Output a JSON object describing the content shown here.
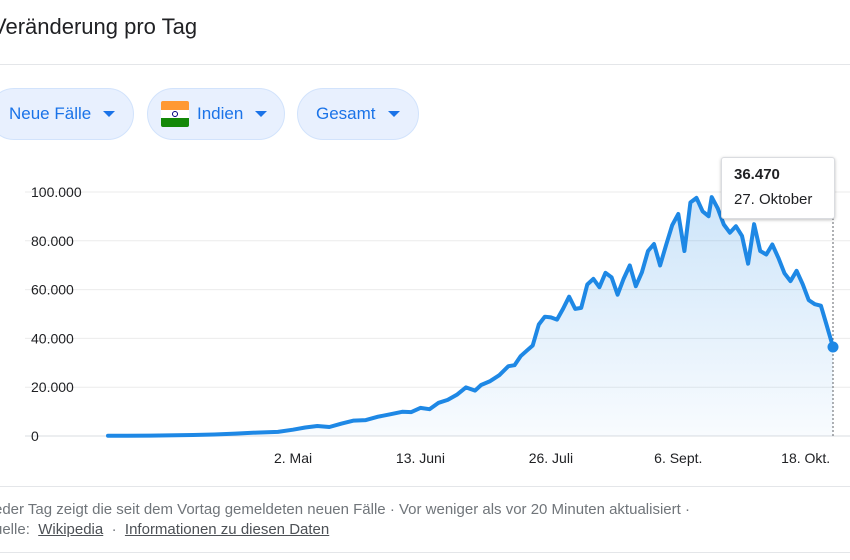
{
  "header": {
    "title": "Veränderung pro Tag"
  },
  "filters": {
    "metric_label": "Neue Fälle",
    "region_label": "Indien",
    "scope_label": "Gesamt"
  },
  "colors": {
    "accent": "#1a73e8",
    "chip_bg": "#e8f0fe",
    "line": "#1e88e5",
    "flag": [
      "#ff9933",
      "#ffffff",
      "#138808",
      "#000080"
    ]
  },
  "tooltip": {
    "value": "36.470",
    "date": "27. Oktober"
  },
  "footer": {
    "line1": "eder Tag zeigt die seit dem Vortag gemeldeten neuen Fälle · Vor weniger als vor 20 Minuten aktualisiert  ·",
    "source_prefix": "uelle:",
    "source_link": "Wikipedia",
    "separator": "·",
    "info_link": "Informationen zu diesen Daten"
  },
  "chart_data": {
    "type": "area",
    "title": "",
    "xlabel": "",
    "ylabel": "",
    "ylim": [
      0,
      100000
    ],
    "xlim": [
      "2020-03-02",
      "2020-10-27"
    ],
    "y_ticks": [
      0,
      20000,
      40000,
      60000,
      80000,
      100000
    ],
    "y_tick_labels": [
      "0",
      "20.000",
      "40.000",
      "60.000",
      "80.000",
      "100.000"
    ],
    "x_ticks": [
      "2020-05-02",
      "2020-06-13",
      "2020-07-26",
      "2020-09-06",
      "2020-10-18"
    ],
    "x_tick_labels": [
      "2. Mai",
      "13. Juni",
      "26. Juli",
      "6. Sept.",
      "18. Okt."
    ],
    "grid": true,
    "series": [
      {
        "values": [
          [
            "2020-03-02",
            100
          ],
          [
            "2020-03-16",
            150
          ],
          [
            "2020-03-30",
            400
          ],
          [
            "2020-04-06",
            600
          ],
          [
            "2020-04-13",
            1000
          ],
          [
            "2020-04-20",
            1400
          ],
          [
            "2020-04-27",
            1700
          ],
          [
            "2020-05-02",
            2600
          ],
          [
            "2020-05-06",
            3500
          ],
          [
            "2020-05-10",
            4100
          ],
          [
            "2020-05-14",
            3700
          ],
          [
            "2020-05-18",
            5100
          ],
          [
            "2020-05-22",
            6300
          ],
          [
            "2020-05-26",
            6500
          ],
          [
            "2020-05-30",
            7900
          ],
          [
            "2020-06-03",
            8900
          ],
          [
            "2020-06-07",
            9900
          ],
          [
            "2020-06-10",
            9800
          ],
          [
            "2020-06-13",
            11500
          ],
          [
            "2020-06-16",
            11000
          ],
          [
            "2020-06-19",
            13600
          ],
          [
            "2020-06-22",
            14800
          ],
          [
            "2020-06-25",
            16900
          ],
          [
            "2020-06-28",
            19900
          ],
          [
            "2020-07-01",
            18600
          ],
          [
            "2020-07-03",
            20900
          ],
          [
            "2020-07-06",
            22500
          ],
          [
            "2020-07-09",
            24900
          ],
          [
            "2020-07-12",
            28600
          ],
          [
            "2020-07-14",
            29000
          ],
          [
            "2020-07-16",
            32700
          ],
          [
            "2020-07-18",
            34900
          ],
          [
            "2020-07-20",
            37100
          ],
          [
            "2020-07-22",
            45700
          ],
          [
            "2020-07-24",
            48900
          ],
          [
            "2020-07-26",
            48600
          ],
          [
            "2020-07-28",
            47700
          ],
          [
            "2020-07-30",
            52100
          ],
          [
            "2020-08-01",
            57100
          ],
          [
            "2020-08-03",
            52100
          ],
          [
            "2020-08-05",
            52500
          ],
          [
            "2020-08-07",
            62100
          ],
          [
            "2020-08-09",
            64400
          ],
          [
            "2020-08-11",
            61000
          ],
          [
            "2020-08-13",
            66900
          ],
          [
            "2020-08-15",
            65000
          ],
          [
            "2020-08-17",
            57900
          ],
          [
            "2020-08-19",
            64500
          ],
          [
            "2020-08-21",
            69900
          ],
          [
            "2020-08-23",
            61400
          ],
          [
            "2020-08-25",
            67100
          ],
          [
            "2020-08-27",
            75800
          ],
          [
            "2020-08-29",
            78700
          ],
          [
            "2020-08-31",
            69900
          ],
          [
            "2020-09-02",
            78400
          ],
          [
            "2020-09-04",
            86400
          ],
          [
            "2020-09-06",
            91000
          ],
          [
            "2020-09-08",
            75800
          ],
          [
            "2020-09-10",
            95700
          ],
          [
            "2020-09-12",
            97600
          ],
          [
            "2020-09-14",
            92100
          ],
          [
            "2020-09-16",
            90100
          ],
          [
            "2020-09-17",
            97900
          ],
          [
            "2020-09-19",
            93300
          ],
          [
            "2020-09-21",
            86700
          ],
          [
            "2020-09-23",
            83300
          ],
          [
            "2020-09-25",
            86000
          ],
          [
            "2020-09-27",
            82000
          ],
          [
            "2020-09-29",
            70600
          ],
          [
            "2020-10-01",
            86800
          ],
          [
            "2020-10-03",
            75800
          ],
          [
            "2020-10-05",
            74400
          ],
          [
            "2020-10-07",
            78500
          ],
          [
            "2020-10-09",
            73000
          ],
          [
            "2020-10-11",
            66700
          ],
          [
            "2020-10-13",
            63500
          ],
          [
            "2020-10-15",
            67700
          ],
          [
            "2020-10-17",
            62200
          ],
          [
            "2020-10-19",
            55700
          ],
          [
            "2020-10-21",
            54000
          ],
          [
            "2020-10-23",
            53400
          ],
          [
            "2020-10-25",
            45100
          ],
          [
            "2020-10-27",
            36470
          ]
        ]
      }
    ],
    "highlight": {
      "x": "2020-10-27",
      "y": 36470
    }
  }
}
